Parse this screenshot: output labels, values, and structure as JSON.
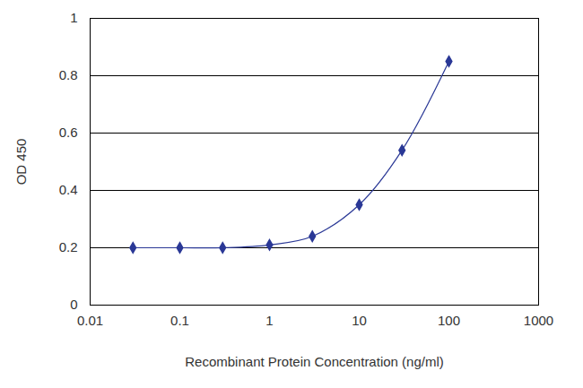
{
  "chart_data": {
    "type": "line",
    "x_label": "Recombinant Protein Concentration (ng/ml)",
    "y_label": "OD 450",
    "x": [
      0.03,
      0.1,
      0.3,
      1,
      3,
      10,
      30,
      100
    ],
    "values": [
      0.2,
      0.2,
      0.2,
      0.21,
      0.24,
      0.35,
      0.54,
      0.85
    ],
    "color": "#2a3896",
    "marker": "diamond",
    "log": "x",
    "xlim": [
      0.01,
      1000
    ],
    "xticks": [
      0.01,
      0.1,
      1,
      10,
      100,
      1000
    ],
    "ylim": [
      0,
      1
    ],
    "yticks": [
      0,
      0.2,
      0.4,
      0.6,
      0.8,
      1
    ],
    "grid": true
  }
}
